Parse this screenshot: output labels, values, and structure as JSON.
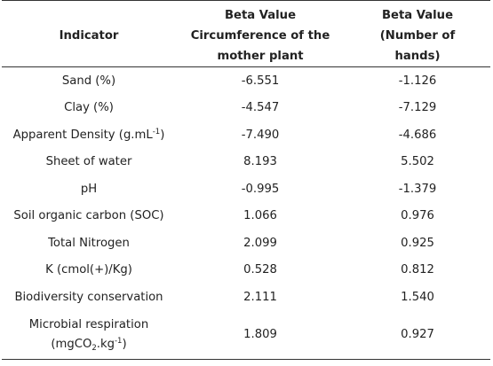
{
  "headers": {
    "indicator": "Indicator",
    "circumference": [
      "Beta Value",
      "Circumference of the",
      "mother plant"
    ],
    "hands": [
      "Beta Value",
      "(Number of",
      "hands)"
    ]
  },
  "rows": [
    {
      "indicator": "Sand (%)",
      "circumference": "-6.551",
      "hands": "-1.126"
    },
    {
      "indicator": "Clay (%)",
      "circumference": "-4.547",
      "hands": "-7.129"
    },
    {
      "indicator_main": "Apparent Density (g.mL",
      "indicator_sup": "-1",
      "indicator_tail": ")",
      "circumference": "-7.490",
      "hands": "-4.686"
    },
    {
      "indicator": "Sheet of water",
      "circumference": "8.193",
      "hands": "5.502"
    },
    {
      "indicator": "pH",
      "circumference": "-0.995",
      "hands": "-1.379"
    },
    {
      "indicator": "Soil organic carbon (SOC)",
      "circumference": "1.066",
      "hands": "0.976"
    },
    {
      "indicator": "Total Nitrogen",
      "circumference": "2.099",
      "hands": "0.925"
    },
    {
      "indicator": "K (cmol(+)/Kg)",
      "circumference": "0.528",
      "hands": "0.812"
    },
    {
      "indicator": "Biodiversity conservation",
      "circumference": "2.111",
      "hands": "1.540"
    },
    {
      "indicator_line1": "Microbial respiration",
      "indicator_p1": "(mgCO",
      "indicator_sub": "2",
      "indicator_p2": ".kg",
      "indicator_sup": "-1",
      "indicator_p3": ")",
      "circumference": "1.809",
      "hands": "0.927"
    }
  ]
}
